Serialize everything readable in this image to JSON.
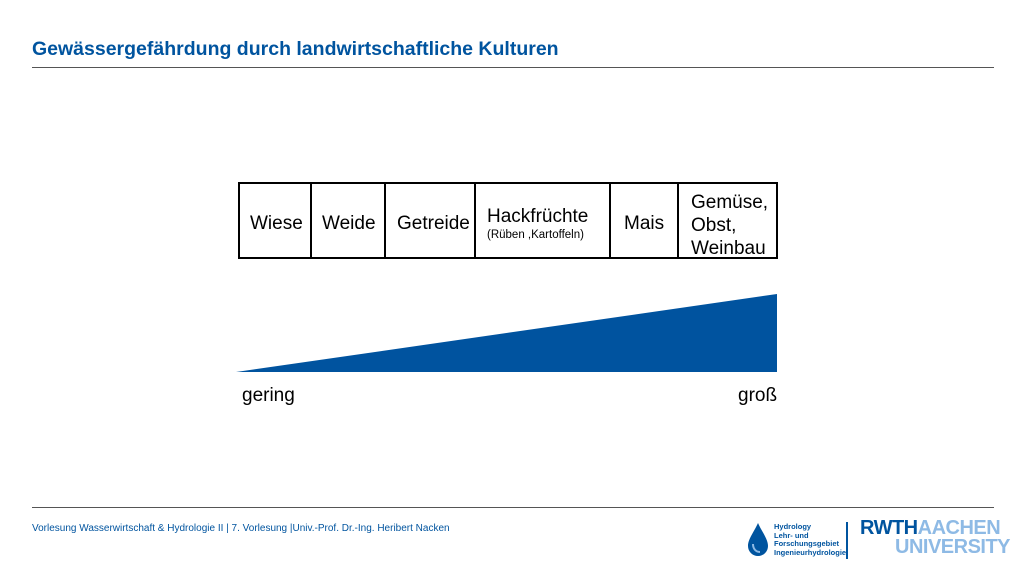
{
  "title": "Gewässergefährdung durch landwirtschaftliche Kulturen",
  "crops": [
    {
      "label": "Wiese"
    },
    {
      "label": "Weide"
    },
    {
      "label": "Getreide"
    },
    {
      "label": "Hackfrüchte",
      "sub": "(Rüben ,Kartoffeln)"
    },
    {
      "label": "Mais"
    },
    {
      "label_lines": [
        "Gemüse,",
        "Obst,",
        "Weinbau"
      ]
    }
  ],
  "scale": {
    "low": "gering",
    "high": "groß"
  },
  "colors": {
    "accent": "#00549f",
    "light_blue": "#8ebae5",
    "wedge": "#00539f"
  },
  "footer": "Vorlesung Wasserwirtschaft & Hydrologie II | 7. Vorlesung |Univ.-Prof. Dr.-Ing. Heribert Nacken",
  "logo": {
    "hydro_lines": [
      "Hydrology",
      "Lehr- und",
      "Forschungsgebiet",
      "Ingenieurhydrologie"
    ],
    "rwth": "RWTH",
    "aachen": "AACHEN",
    "university": "UNIVERSITY"
  }
}
